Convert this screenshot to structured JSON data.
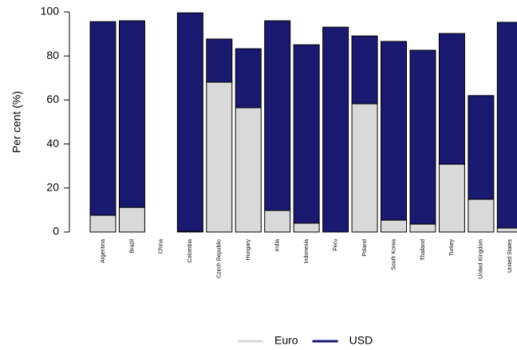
{
  "chart_data": {
    "type": "stacked_bar",
    "y_label": "Per cent (%)",
    "categories": [
      "Argentina",
      "Brazil",
      "China",
      "Colombia",
      "Czech Republic",
      "Hungary",
      "India",
      "Indonesia",
      "Peru",
      "Poland",
      "South Korea",
      "Thailand",
      "Turkey",
      "United Kingdom",
      "United States"
    ],
    "series": [
      {
        "name": "Euro",
        "color": "#d9d9d9",
        "values": [
          7.6,
          11.2,
          null,
          0.3,
          68.1,
          56.5,
          9.8,
          4.0,
          0,
          58.3,
          5.4,
          3.6,
          30.8,
          14.9,
          1.8
        ]
      },
      {
        "name": "USD",
        "color": "#191970",
        "values": [
          88.0,
          84.8,
          null,
          99.3,
          19.6,
          26.8,
          86.2,
          81.1,
          93.1,
          30.8,
          81.2,
          79.0,
          59.4,
          47.1,
          93.5
        ]
      }
    ],
    "ylim": [
      0,
      100
    ],
    "yticks": [
      0,
      20,
      40,
      60,
      80,
      100
    ],
    "grid": false,
    "legend": "bottom"
  }
}
